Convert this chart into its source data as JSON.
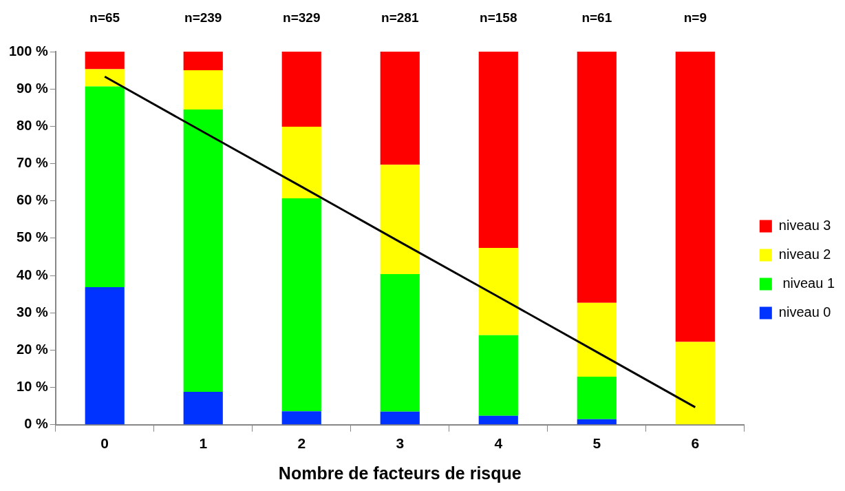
{
  "chart_data": {
    "type": "bar",
    "stacked": true,
    "xlabel": "Nombre de facteurs de risque",
    "categories": [
      "0",
      "1",
      "2",
      "3",
      "4",
      "5",
      "6"
    ],
    "ylim": [
      0,
      100
    ],
    "yticks": [
      {
        "value": 0,
        "label": "0 %"
      },
      {
        "value": 10,
        "label": "10 %"
      },
      {
        "value": 20,
        "label": "20 %"
      },
      {
        "value": 30,
        "label": "30 %"
      },
      {
        "value": 40,
        "label": "40 %"
      },
      {
        "value": 50,
        "label": "50 %"
      },
      {
        "value": 60,
        "label": "60 %"
      },
      {
        "value": 70,
        "label": "70 %"
      },
      {
        "value": 80,
        "label": "80 %"
      },
      {
        "value": 90,
        "label": "90 %"
      },
      {
        "value": 100,
        "label": "100 %"
      }
    ],
    "grid": false,
    "legend": "right",
    "series": [
      {
        "name": "niveau 0",
        "color": "#0033ff",
        "values": [
          36.9,
          8.8,
          3.6,
          3.5,
          2.4,
          1.5,
          0
        ]
      },
      {
        "name": " niveau 1",
        "color": "#00ff00",
        "values": [
          53.8,
          75.7,
          57.1,
          36.9,
          21.6,
          11.4,
          0
        ]
      },
      {
        "name": "niveau 2",
        "color": "#ffff00",
        "values": [
          4.6,
          10.5,
          19.2,
          29.3,
          23.4,
          19.8,
          22.2
        ]
      },
      {
        "name": "niveau 3",
        "color": "#ff0000",
        "values": [
          4.7,
          5.0,
          20.1,
          30.3,
          52.6,
          67.3,
          77.8
        ]
      },
      {
        "type": "line",
        "color": "#000000",
        "values": [
          93.3,
          78.5,
          63.8,
          49.0,
          34.3,
          19.5,
          4.7
        ]
      }
    ],
    "annotations": [
      "n=65",
      "n=239",
      "n=329",
      "n=281",
      "n=158",
      "n=61",
      "n=9"
    ]
  }
}
